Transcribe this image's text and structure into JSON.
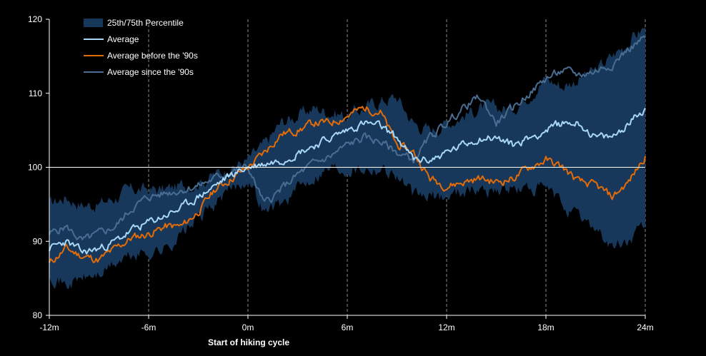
{
  "chart_data": {
    "type": "line",
    "title": "",
    "xlabel": "Start of hiking  cycle",
    "ylabel": "",
    "xlim": [
      -12,
      24
    ],
    "ylim": [
      80,
      120
    ],
    "x_ticks": [
      -12,
      -6,
      0,
      6,
      12,
      18,
      24
    ],
    "x_tick_labels": [
      "-12m",
      "-6m",
      "0m",
      "6m",
      "12m",
      "18m",
      "24m"
    ],
    "y_ticks": [
      80,
      90,
      100,
      110,
      120
    ],
    "y_tick_labels": [
      "80",
      "90",
      "100",
      "110",
      "120"
    ],
    "vertical_dashed_gridlines_at": [
      -6,
      0,
      6,
      12,
      18,
      24
    ],
    "reference_line_y": 100,
    "legend_position": "top-left",
    "colors": {
      "background": "#000000",
      "band": "#17385a",
      "average": "#a9d7f7",
      "before_90s": "#e36c09",
      "since_90s": "#4a6d92",
      "axis": "#ffffff",
      "reference_line": "#ffffff",
      "gridline": "#8a8a8a"
    },
    "legend": [
      {
        "key": "band",
        "label": "25th/75th Percentile",
        "kind": "area"
      },
      {
        "key": "average",
        "label": "Average",
        "kind": "line"
      },
      {
        "key": "before_90s",
        "label": "Average before the '90s",
        "kind": "line"
      },
      {
        "key": "since_90s",
        "label": "Average since the '90s",
        "kind": "line"
      }
    ],
    "x": [
      -12,
      -11,
      -10,
      -9,
      -8,
      -7,
      -6,
      -5,
      -4,
      -3,
      -2,
      -1,
      0,
      1,
      2,
      3,
      4,
      5,
      6,
      7,
      8,
      9,
      10,
      11,
      12,
      13,
      14,
      15,
      16,
      17,
      18,
      19,
      20,
      21,
      22,
      23,
      24
    ],
    "band": {
      "name": "25th/75th Percentile",
      "upper": [
        95,
        96,
        95,
        95,
        96,
        97,
        97,
        97,
        97.5,
        98,
        99,
        100,
        101,
        103,
        106,
        107,
        108,
        107.5,
        107,
        108,
        109,
        109.5,
        106,
        105,
        106,
        107,
        108,
        108,
        108,
        110,
        112,
        111,
        112,
        113,
        115,
        117,
        119
      ],
      "lower": [
        86,
        84,
        85,
        85.5,
        87,
        88,
        88.5,
        89,
        91,
        93,
        95,
        97,
        98.5,
        94,
        95,
        97,
        99,
        100,
        100,
        100,
        100,
        99,
        96,
        96,
        96,
        97,
        97,
        97,
        97,
        97,
        97,
        95,
        93,
        92,
        89,
        90,
        92
      ]
    },
    "series": [
      {
        "key": "average",
        "name": "Average",
        "values": [
          89,
          90,
          88.5,
          89,
          90,
          91.5,
          92.5,
          93.5,
          94.5,
          96,
          97.5,
          99,
          100,
          100.5,
          101,
          102,
          103,
          104,
          105,
          106,
          105.5,
          104,
          101,
          101,
          102,
          103,
          104,
          104,
          103,
          104,
          105,
          106,
          106,
          104,
          104,
          106,
          108
        ]
      },
      {
        "key": "before_90s",
        "name": "Average before the '90s",
        "values": [
          87,
          89,
          88,
          87.5,
          89,
          90.5,
          91,
          92,
          92,
          94,
          97,
          98.5,
          100,
          102,
          104.5,
          105,
          106,
          106,
          107,
          108,
          107.5,
          103,
          102,
          98.5,
          97.5,
          98,
          98.5,
          98,
          98.5,
          100,
          101,
          100,
          98,
          97.5,
          96,
          98,
          101.5
        ]
      },
      {
        "key": "since_90s",
        "name": "Average since the '90s",
        "values": [
          91,
          92,
          90,
          91,
          92,
          94.5,
          96,
          96.5,
          97,
          97.5,
          98.5,
          99.5,
          100,
          95,
          97,
          99,
          100.5,
          101.5,
          103,
          104,
          103.5,
          102,
          101,
          104,
          106,
          108,
          109.5,
          106,
          108,
          110,
          112,
          113,
          112.5,
          113,
          114,
          116,
          117.5
        ]
      }
    ]
  }
}
